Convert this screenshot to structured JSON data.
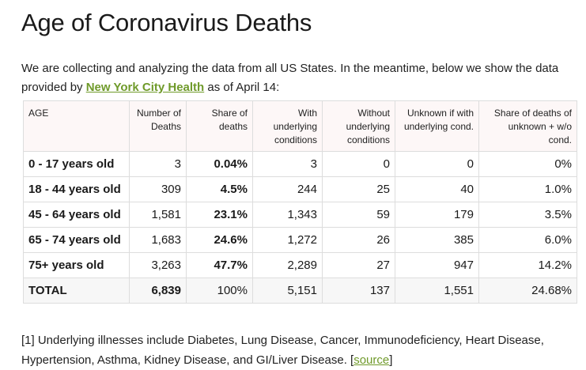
{
  "title": "Age of Coronavirus Deaths",
  "intro": {
    "before_link": "We are collecting and analyzing the data from all US States. In the meantime, below we show the data provided by ",
    "link_text": "New York City Health",
    "after_link": " as of April 14:"
  },
  "table": {
    "headers": [
      "AGE",
      "Number of Deaths",
      "Share of deaths",
      "With underlying conditions",
      "Without underlying conditions",
      "Unknown if with underlying cond.",
      "Share of deaths of unknown + w/o cond."
    ],
    "rows": [
      [
        "0 - 17 years old",
        "3",
        "0.04%",
        "3",
        "0",
        "0",
        "0%"
      ],
      [
        "18 - 44 years old",
        "309",
        "4.5%",
        "244",
        "25",
        "40",
        "1.0%"
      ],
      [
        "45 - 64 years old",
        "1,581",
        "23.1%",
        "1,343",
        "59",
        "179",
        "3.5%"
      ],
      [
        "65 - 74 years old",
        "1,683",
        "24.6%",
        "1,272",
        "26",
        "385",
        "6.0%"
      ],
      [
        "75+ years old",
        "3,263",
        "47.7%",
        "2,289",
        "27",
        "947",
        "14.2%"
      ],
      [
        "TOTAL",
        "6,839",
        "100%",
        "5,151",
        "137",
        "1,551",
        "24.68%"
      ]
    ]
  },
  "footnote": {
    "text": "[1] Underlying illnesses include Diabetes, Lung Disease, Cancer, Immunodeficiency, Heart Disease, Hypertension, Asthma, Kidney Disease, and GI/Liver Disease. [",
    "link_text": "source",
    "closing": "]"
  },
  "colors": {
    "link": "#6f9a2a",
    "header_bg": "#fdf7f7",
    "total_bg": "#f7f7f7",
    "border": "#dddddd"
  }
}
